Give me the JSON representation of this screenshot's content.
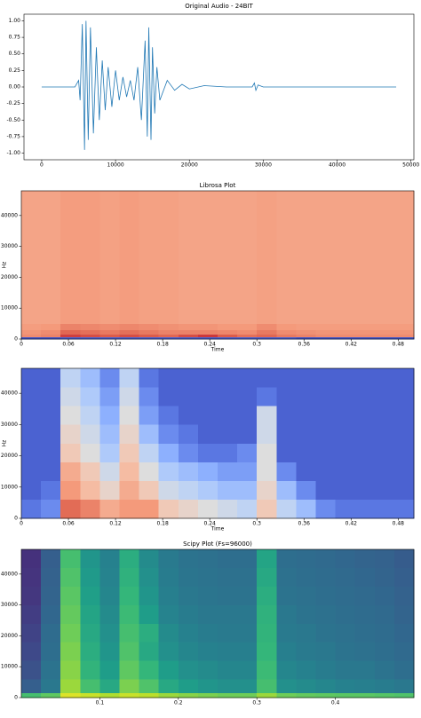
{
  "chart_data": [
    {
      "type": "line",
      "title": "Original Audio - 24BIT",
      "color": "#1f77b4",
      "x": [
        0,
        4500,
        5000,
        5200,
        5500,
        5800,
        6000,
        6300,
        6600,
        7000,
        7400,
        7800,
        8200,
        8600,
        9000,
        9500,
        10000,
        10500,
        11000,
        11500,
        12000,
        12500,
        13000,
        13500,
        14000,
        14300,
        14500,
        14800,
        15000,
        15300,
        15600,
        16000,
        17000,
        18000,
        19000,
        20000,
        22000,
        25000,
        28500,
        28800,
        29000,
        29300,
        30000,
        48000
      ],
      "values": [
        0,
        0,
        0.1,
        -0.2,
        0.95,
        -0.95,
        1.0,
        -0.8,
        0.9,
        -0.7,
        0.6,
        -0.5,
        0.4,
        -0.35,
        0.3,
        -0.3,
        0.25,
        -0.2,
        0.15,
        -0.15,
        0.1,
        -0.2,
        0.3,
        -0.5,
        0.7,
        -0.75,
        0.9,
        -0.8,
        0.6,
        -0.4,
        0.3,
        -0.2,
        0.1,
        -0.05,
        0.04,
        -0.03,
        0.02,
        0,
        0,
        0.06,
        -0.05,
        0.03,
        0,
        0
      ],
      "xlim": [
        -2400,
        50400
      ],
      "xticks": [
        0,
        10000,
        20000,
        30000,
        40000,
        50000
      ],
      "ylim": [
        -1.1,
        1.1
      ],
      "yticks": [
        {
          "value": 1,
          "label": "1.00"
        },
        {
          "value": 0.75,
          "label": "0.75"
        },
        {
          "value": 0.5,
          "label": "0.50"
        },
        {
          "value": 0.25,
          "label": "0.25"
        },
        {
          "value": 0,
          "label": "0.00"
        },
        {
          "value": -0.25,
          "label": "-0.25"
        },
        {
          "value": -0.5,
          "label": "-0.50"
        },
        {
          "value": -0.75,
          "label": "-0.75"
        },
        {
          "value": -1,
          "label": "-1.00"
        }
      ]
    },
    {
      "type": "heatmap",
      "title": "Librosa Plot",
      "x_label": "Time",
      "y_label": "Hz",
      "colormap": "coolwarm",
      "zlim": [
        0,
        1
      ],
      "x_edges": [
        0,
        0.025,
        0.05,
        0.075,
        0.1,
        0.125,
        0.15,
        0.175,
        0.2,
        0.225,
        0.25,
        0.275,
        0.3,
        0.325,
        0.35,
        0.375,
        0.4,
        0.425,
        0.45,
        0.475,
        0.5
      ],
      "y_edges": [
        0,
        700,
        1500,
        3000,
        5000,
        48000
      ],
      "z": [
        [
          0.02,
          0.02,
          0.05,
          0.05,
          0.05,
          0.05,
          0.05,
          0.05,
          0.05,
          0.05,
          0.05,
          0.05,
          0.05,
          0.05,
          0.02,
          0.02,
          0.02,
          0.02,
          0.02,
          0.02
        ],
        [
          0.78,
          0.8,
          0.92,
          0.9,
          0.88,
          0.9,
          0.88,
          0.86,
          0.9,
          0.93,
          0.88,
          0.84,
          0.86,
          0.82,
          0.8,
          0.78,
          0.78,
          0.78,
          0.78,
          0.78
        ],
        [
          0.76,
          0.78,
          0.86,
          0.84,
          0.82,
          0.84,
          0.82,
          0.8,
          0.8,
          0.8,
          0.79,
          0.78,
          0.82,
          0.78,
          0.77,
          0.76,
          0.76,
          0.76,
          0.76,
          0.76
        ],
        [
          0.74,
          0.75,
          0.8,
          0.79,
          0.78,
          0.79,
          0.78,
          0.77,
          0.76,
          0.76,
          0.75,
          0.75,
          0.78,
          0.75,
          0.74,
          0.74,
          0.74,
          0.74,
          0.74,
          0.74
        ],
        [
          0.72,
          0.72,
          0.74,
          0.74,
          0.73,
          0.74,
          0.73,
          0.73,
          0.72,
          0.72,
          0.72,
          0.72,
          0.73,
          0.72,
          0.72,
          0.72,
          0.72,
          0.72,
          0.72,
          0.72
        ]
      ],
      "xlim": [
        0,
        0.5
      ],
      "xticks": [
        0,
        0.06,
        0.12,
        0.18,
        0.24,
        0.3,
        0.36,
        0.42,
        0.48
      ],
      "ylim": [
        0,
        48000
      ],
      "yticks": [
        0,
        10000,
        20000,
        30000,
        40000
      ]
    },
    {
      "type": "heatmap",
      "x_label": "Time",
      "y_label": "Hz",
      "colormap": "coolwarm",
      "zlim": [
        0,
        1
      ],
      "x_edges": [
        0,
        0.025,
        0.05,
        0.075,
        0.1,
        0.125,
        0.15,
        0.175,
        0.2,
        0.225,
        0.25,
        0.275,
        0.3,
        0.325,
        0.35,
        0.375,
        0.4,
        0.425,
        0.45,
        0.475,
        0.5
      ],
      "y_edges": [
        0,
        6000,
        12000,
        18000,
        24000,
        30000,
        36000,
        42000,
        48000
      ],
      "z": [
        [
          0.1,
          0.15,
          0.85,
          0.8,
          0.7,
          0.75,
          0.75,
          0.6,
          0.55,
          0.5,
          0.45,
          0.4,
          0.6,
          0.4,
          0.3,
          0.15,
          0.1,
          0.1,
          0.1,
          0.1
        ],
        [
          0.05,
          0.1,
          0.75,
          0.65,
          0.55,
          0.7,
          0.6,
          0.45,
          0.4,
          0.35,
          0.3,
          0.3,
          0.55,
          0.3,
          0.15,
          0.05,
          0.05,
          0.05,
          0.05,
          0.05
        ],
        [
          0.05,
          0.05,
          0.7,
          0.6,
          0.45,
          0.65,
          0.5,
          0.35,
          0.3,
          0.25,
          0.2,
          0.2,
          0.5,
          0.15,
          0.05,
          0.05,
          0.05,
          0.05,
          0.05,
          0.05
        ],
        [
          0.05,
          0.05,
          0.6,
          0.5,
          0.35,
          0.6,
          0.4,
          0.25,
          0.15,
          0.1,
          0.1,
          0.15,
          0.5,
          0.05,
          0.05,
          0.05,
          0.05,
          0.05,
          0.05,
          0.05
        ],
        [
          0.05,
          0.05,
          0.55,
          0.45,
          0.3,
          0.55,
          0.3,
          0.15,
          0.1,
          0.05,
          0.05,
          0.05,
          0.45,
          0.05,
          0.05,
          0.05,
          0.05,
          0.05,
          0.05,
          0.05
        ],
        [
          0.05,
          0.05,
          0.5,
          0.4,
          0.25,
          0.5,
          0.2,
          0.1,
          0.05,
          0.05,
          0.05,
          0.05,
          0.45,
          0.05,
          0.05,
          0.05,
          0.05,
          0.05,
          0.05,
          0.05
        ],
        [
          0.05,
          0.05,
          0.45,
          0.35,
          0.2,
          0.45,
          0.15,
          0.05,
          0.05,
          0.05,
          0.05,
          0.05,
          0.1,
          0.05,
          0.05,
          0.05,
          0.05,
          0.05,
          0.05,
          0.05
        ],
        [
          0.05,
          0.05,
          0.4,
          0.3,
          0.15,
          0.4,
          0.1,
          0.05,
          0.05,
          0.05,
          0.05,
          0.05,
          0.05,
          0.05,
          0.05,
          0.05,
          0.05,
          0.05,
          0.05,
          0.05
        ]
      ],
      "xlim": [
        0,
        0.5
      ],
      "xticks": [
        0,
        0.06,
        0.12,
        0.18,
        0.24,
        0.3,
        0.36,
        0.42,
        0.48
      ],
      "ylim": [
        0,
        48000
      ],
      "yticks": [
        0,
        10000,
        20000,
        30000,
        40000
      ]
    },
    {
      "type": "heatmap",
      "title": "Scipy Plot (Fs=96000)",
      "colormap": "viridis",
      "zlim": [
        0,
        1
      ],
      "x_edges": [
        0,
        0.025,
        0.05,
        0.075,
        0.1,
        0.125,
        0.15,
        0.175,
        0.2,
        0.225,
        0.25,
        0.275,
        0.3,
        0.325,
        0.35,
        0.375,
        0.4,
        0.425,
        0.45,
        0.475,
        0.5
      ],
      "y_edges": [
        0,
        1500,
        6000,
        12000,
        18000,
        24000,
        30000,
        36000,
        42000,
        48000
      ],
      "z": [
        [
          0.7,
          0.75,
          0.95,
          0.92,
          0.88,
          0.92,
          0.9,
          0.85,
          0.82,
          0.8,
          0.78,
          0.78,
          0.85,
          0.78,
          0.76,
          0.75,
          0.74,
          0.74,
          0.73,
          0.72
        ],
        [
          0.3,
          0.4,
          0.85,
          0.7,
          0.6,
          0.8,
          0.72,
          0.6,
          0.55,
          0.52,
          0.5,
          0.5,
          0.7,
          0.5,
          0.48,
          0.46,
          0.44,
          0.43,
          0.42,
          0.4
        ],
        [
          0.25,
          0.38,
          0.82,
          0.65,
          0.55,
          0.75,
          0.66,
          0.55,
          0.5,
          0.48,
          0.46,
          0.46,
          0.68,
          0.46,
          0.44,
          0.42,
          0.4,
          0.4,
          0.38,
          0.36
        ],
        [
          0.22,
          0.36,
          0.8,
          0.62,
          0.52,
          0.72,
          0.6,
          0.5,
          0.46,
          0.44,
          0.43,
          0.43,
          0.66,
          0.43,
          0.41,
          0.4,
          0.38,
          0.37,
          0.36,
          0.34
        ],
        [
          0.2,
          0.35,
          0.78,
          0.6,
          0.5,
          0.7,
          0.62,
          0.48,
          0.44,
          0.42,
          0.41,
          0.41,
          0.65,
          0.41,
          0.4,
          0.38,
          0.37,
          0.36,
          0.35,
          0.33
        ],
        [
          0.18,
          0.33,
          0.76,
          0.58,
          0.48,
          0.68,
          0.55,
          0.45,
          0.42,
          0.4,
          0.4,
          0.4,
          0.64,
          0.4,
          0.38,
          0.37,
          0.36,
          0.35,
          0.34,
          0.32
        ],
        [
          0.16,
          0.32,
          0.74,
          0.56,
          0.46,
          0.66,
          0.52,
          0.43,
          0.4,
          0.39,
          0.38,
          0.38,
          0.62,
          0.38,
          0.37,
          0.36,
          0.35,
          0.34,
          0.33,
          0.31
        ],
        [
          0.15,
          0.31,
          0.72,
          0.54,
          0.45,
          0.64,
          0.5,
          0.42,
          0.39,
          0.38,
          0.37,
          0.37,
          0.6,
          0.37,
          0.36,
          0.35,
          0.34,
          0.33,
          0.32,
          0.3
        ],
        [
          0.14,
          0.3,
          0.7,
          0.52,
          0.44,
          0.62,
          0.48,
          0.41,
          0.38,
          0.37,
          0.36,
          0.36,
          0.58,
          0.36,
          0.35,
          0.34,
          0.33,
          0.32,
          0.31,
          0.29
        ]
      ],
      "xlim": [
        0,
        0.5
      ],
      "xticks": [
        0.1,
        0.2,
        0.3,
        0.4
      ],
      "ylim": [
        0,
        48000
      ],
      "yticks": [
        0,
        10000,
        20000,
        30000,
        40000
      ]
    }
  ]
}
